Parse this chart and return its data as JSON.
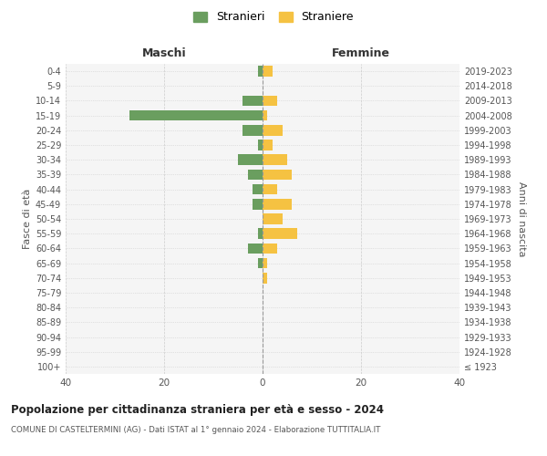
{
  "age_groups": [
    "100+",
    "95-99",
    "90-94",
    "85-89",
    "80-84",
    "75-79",
    "70-74",
    "65-69",
    "60-64",
    "55-59",
    "50-54",
    "45-49",
    "40-44",
    "35-39",
    "30-34",
    "25-29",
    "20-24",
    "15-19",
    "10-14",
    "5-9",
    "0-4"
  ],
  "birth_years": [
    "≤ 1923",
    "1924-1928",
    "1929-1933",
    "1934-1938",
    "1939-1943",
    "1944-1948",
    "1949-1953",
    "1954-1958",
    "1959-1963",
    "1964-1968",
    "1969-1973",
    "1974-1978",
    "1979-1983",
    "1984-1988",
    "1989-1993",
    "1994-1998",
    "1999-2003",
    "2004-2008",
    "2009-2013",
    "2014-2018",
    "2019-2023"
  ],
  "stranieri": [
    0,
    0,
    0,
    0,
    0,
    0,
    0,
    1,
    3,
    1,
    0,
    2,
    2,
    3,
    5,
    1,
    4,
    27,
    4,
    0,
    1
  ],
  "straniere": [
    0,
    0,
    0,
    0,
    0,
    0,
    1,
    1,
    3,
    7,
    4,
    6,
    3,
    6,
    5,
    2,
    4,
    1,
    3,
    0,
    2
  ],
  "color_stranieri": "#6a9e5f",
  "color_straniere": "#f5c242",
  "title": "Popolazione per cittadinanza straniera per età e sesso - 2024",
  "subtitle": "COMUNE DI CASTELTERMINI (AG) - Dati ISTAT al 1° gennaio 2024 - Elaborazione TUTTITALIA.IT",
  "xlabel_left": "Maschi",
  "xlabel_right": "Femmine",
  "ylabel_left": "Fasce di età",
  "ylabel_right": "Anni di nascita",
  "xlim": 40,
  "bg_color": "#f5f5f5",
  "grid_color": "#cccccc",
  "legend_label_m": "Stranieri",
  "legend_label_f": "Straniere"
}
